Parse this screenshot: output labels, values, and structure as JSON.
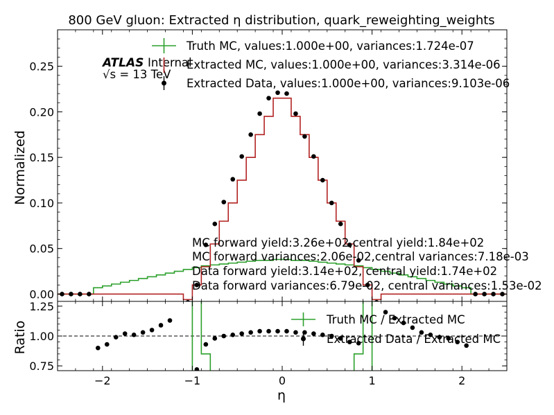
{
  "chart_data": [
    {
      "type": "line",
      "panel": "main",
      "title": "800 GeV gluon: Extracted η distribution, quark_reweighting_weights",
      "xlabel": "",
      "ylabel": "Normalized",
      "xlim": [
        -2.5,
        2.5
      ],
      "ylim": [
        -0.008,
        0.29
      ],
      "xticks": [
        -2,
        -1,
        0,
        1,
        2
      ],
      "xtick_labels": [
        "−2",
        "−1",
        "0",
        "1",
        "2"
      ],
      "yticks": [
        0.0,
        0.05,
        0.1,
        0.15,
        0.2,
        0.25
      ],
      "ytick_labels": [
        "0.00",
        "0.05",
        "0.10",
        "0.15",
        "0.20",
        "0.25"
      ],
      "grid": false,
      "legend": "top",
      "experiment_label": "ATLAS",
      "experiment_status": "Internal",
      "energy_label": "√s =  13 TeV",
      "bin_edges": [
        -2.5,
        -2.4,
        -2.3,
        -2.2,
        -2.1,
        -2.0,
        -1.9,
        -1.8,
        -1.7,
        -1.6,
        -1.5,
        -1.4,
        -1.3,
        -1.2,
        -1.1,
        -1.0,
        -0.9,
        -0.8,
        -0.7,
        -0.6,
        -0.5,
        -0.4,
        -0.3,
        -0.2,
        -0.1,
        0.0,
        0.1,
        0.2,
        0.3,
        0.4,
        0.5,
        0.6,
        0.7,
        0.8,
        0.9,
        1.0,
        1.1,
        1.2,
        1.3,
        1.4,
        1.5,
        1.6,
        1.7,
        1.8,
        1.9,
        2.0,
        2.1,
        2.2,
        2.3,
        2.4,
        2.5
      ],
      "series": [
        {
          "name": "Truth MC, values:1.000e+00, variances:1.724e-07",
          "style": "step",
          "color": "#2ca02c",
          "values": [
            0,
            0,
            0,
            0,
            0.007,
            0.009,
            0.011,
            0.013,
            0.015,
            0.017,
            0.019,
            0.021,
            0.023,
            0.025,
            0.027,
            0.029,
            0.031,
            0.032,
            0.033,
            0.034,
            0.035,
            0.036,
            0.037,
            0.037,
            0.038,
            0.038,
            0.037,
            0.037,
            0.036,
            0.035,
            0.034,
            0.033,
            0.032,
            0.031,
            0.029,
            0.027,
            0.025,
            0.023,
            0.021,
            0.019,
            0.017,
            0.015,
            0.013,
            0.011,
            0.009,
            0.007,
            0,
            0,
            0,
            0
          ]
        },
        {
          "name": "Extracted MC, values:1.000e+00, variances:3.314e-06",
          "style": "step",
          "color": "#b22222",
          "values": [
            0,
            0,
            0,
            0,
            0,
            0,
            0,
            0,
            0,
            0,
            0,
            0,
            0,
            0,
            -0.006,
            0.01,
            0.03,
            0.055,
            0.08,
            0.1,
            0.125,
            0.15,
            0.175,
            0.195,
            0.215,
            0.215,
            0.195,
            0.175,
            0.15,
            0.125,
            0.1,
            0.08,
            0.055,
            0.03,
            0.01,
            -0.006,
            0,
            0,
            0,
            0,
            0,
            0,
            0,
            0,
            0,
            0,
            0,
            0,
            0,
            0
          ]
        },
        {
          "name": "Extracted Data, values:1.000e+00, variances:9.103e-06",
          "style": "points",
          "color": "#000000",
          "x": [
            -2.45,
            -2.35,
            -2.25,
            -2.15,
            -1.05,
            -0.95,
            -0.85,
            -0.75,
            -0.65,
            -0.55,
            -0.45,
            -0.35,
            -0.25,
            -0.15,
            -0.05,
            0.05,
            0.15,
            0.25,
            0.35,
            0.45,
            0.55,
            0.65,
            0.75,
            0.85,
            0.95,
            1.05,
            2.15,
            2.25,
            2.35,
            2.45
          ],
          "values": [
            0.0,
            0.0,
            0.0,
            0.0,
            -0.009,
            0.01,
            0.054,
            0.077,
            0.101,
            0.126,
            0.151,
            0.175,
            0.198,
            0.215,
            0.221,
            0.22,
            0.198,
            0.173,
            0.151,
            0.125,
            0.1,
            0.077,
            0.054,
            0.037,
            0.01,
            -0.009,
            0.0,
            0.0,
            0.0,
            0.0
          ]
        }
      ],
      "annotations": [
        "MC forward yield:3.26e+02,central yield:1.84e+02",
        "MC forward variances:2.06e-02,central variances:7.18e-03",
        "Data forward yield:3.14e+02, central yield:1.74e+02",
        "Data forward variances:6.79e-02, central variances:1.53e-02"
      ]
    },
    {
      "type": "line",
      "panel": "ratio",
      "xlabel": "η",
      "ylabel": "Ratio",
      "xlim": [
        -2.5,
        2.5
      ],
      "ylim": [
        0.71,
        1.29
      ],
      "yticks": [
        0.75,
        1.0,
        1.25
      ],
      "ytick_labels": [
        "0.75",
        "1.00",
        "1.25"
      ],
      "reference_line": 1.0,
      "legend": "top-right",
      "series": [
        {
          "name": "Truth MC / Extracted MC",
          "style": "step",
          "color": "#2ca02c",
          "segments": [
            {
              "x": [
                -1.1,
                -1.0,
                -1.0,
                -0.9,
                -0.9,
                -0.8,
                -0.8
              ],
              "values": [
                0.6,
                0.6,
                1.3,
                1.3,
                0.85,
                0.85,
                0.6
              ]
            },
            {
              "x": [
                0.8,
                0.8,
                0.9,
                0.9,
                1.0,
                1.0,
                1.1
              ],
              "values": [
                0.6,
                0.85,
                0.85,
                1.3,
                1.3,
                0.6,
                0.6
              ]
            }
          ]
        },
        {
          "name": "Extracted Data / Extracted MC",
          "style": "points",
          "color": "#000000",
          "x": [
            -2.05,
            -1.95,
            -1.85,
            -1.75,
            -1.65,
            -1.55,
            -1.45,
            -1.35,
            -1.25,
            -0.95,
            -0.85,
            -0.75,
            -0.65,
            -0.55,
            -0.45,
            -0.35,
            -0.25,
            -0.15,
            -0.05,
            0.05,
            0.15,
            0.25,
            0.35,
            0.45,
            0.55,
            0.65,
            0.75,
            0.85,
            1.15,
            1.25,
            1.35,
            1.45,
            1.55,
            1.65,
            1.75,
            1.85,
            1.95,
            2.05
          ],
          "values": [
            0.9,
            0.93,
            0.99,
            1.02,
            1.01,
            1.03,
            1.05,
            1.09,
            1.13,
            0.72,
            0.93,
            0.98,
            1.0,
            1.01,
            1.02,
            1.03,
            1.04,
            1.04,
            1.04,
            1.04,
            1.03,
            1.03,
            1.02,
            1.01,
            1.0,
            0.98,
            0.95,
            0.94,
            1.2,
            1.15,
            1.11,
            1.07,
            1.03,
            1.01,
            0.99,
            0.98,
            0.95,
            0.92
          ]
        }
      ]
    }
  ]
}
